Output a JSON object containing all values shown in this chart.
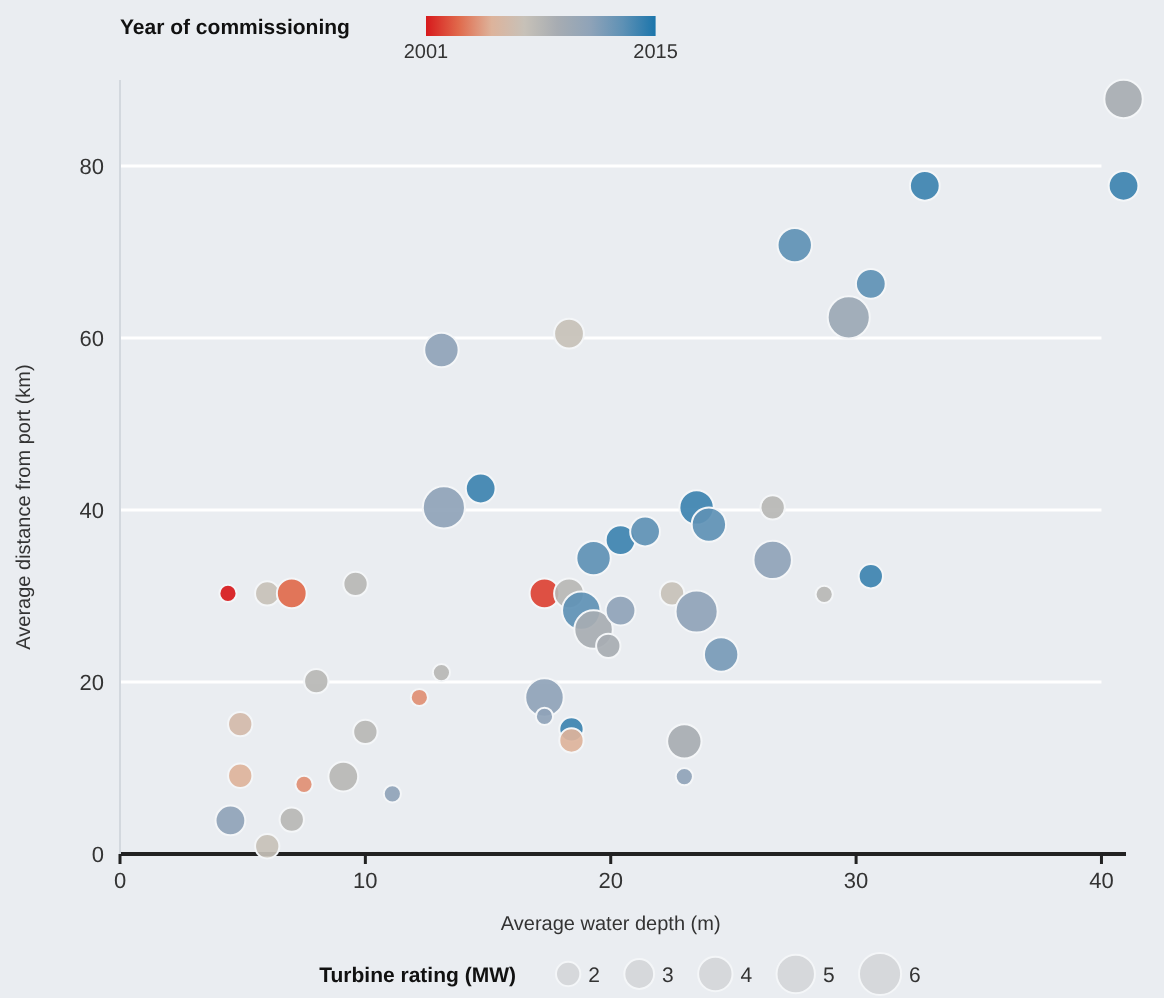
{
  "chart_data": {
    "type": "bubble",
    "xlabel": "Average water depth (m)",
    "ylabel": "Average distance from port (km)",
    "legend_title": "Turbine rating (MW)",
    "clabel": "Year of commissioning",
    "xlim": [
      0,
      41
    ],
    "xticks": [
      0,
      10,
      20,
      30,
      40
    ],
    "ylim": [
      0,
      90
    ],
    "yticks": [
      0,
      20,
      40,
      60,
      80
    ],
    "grid": "y",
    "clim": [
      2001,
      2015
    ],
    "cticks": [
      2001,
      2015
    ],
    "size_legend": [
      2,
      3,
      4,
      5,
      6
    ],
    "x": [
      40.9,
      32.8,
      40.9,
      27.5,
      30.6,
      29.7,
      13.1,
      18.3,
      13.2,
      14.7,
      4.4,
      6.0,
      7.0,
      9.6,
      17.3,
      18.3,
      18.8,
      19.3,
      20.4,
      19.9,
      19.3,
      20.4,
      21.4,
      23.5,
      24.0,
      26.6,
      26.6,
      30.6,
      22.5,
      28.7,
      23.5,
      24.5,
      23.0,
      23.0,
      17.3,
      17.3,
      18.4,
      18.4,
      13.1,
      12.2,
      8.0,
      4.9,
      10.0,
      9.1,
      4.9,
      7.5,
      11.1,
      4.5,
      7.0,
      6.0
    ],
    "values": [
      87.8,
      77.7,
      77.7,
      70.8,
      66.3,
      62.4,
      58.6,
      60.5,
      40.3,
      42.5,
      30.3,
      30.3,
      30.3,
      31.4,
      30.3,
      30.3,
      28.3,
      26.1,
      28.3,
      24.2,
      34.4,
      36.5,
      37.5,
      40.3,
      38.3,
      40.3,
      34.2,
      32.3,
      30.3,
      30.2,
      28.2,
      23.2,
      13.1,
      9.0,
      18.2,
      16.0,
      14.5,
      13.2,
      21.1,
      18.2,
      20.1,
      15.1,
      14.2,
      9.0,
      9.1,
      8.1,
      7.0,
      3.9,
      4.0,
      0.9
    ],
    "sizes": [
      5,
      3,
      3,
      4,
      3,
      6,
      4,
      3,
      6,
      3,
      1,
      2,
      3,
      2,
      3,
      3,
      5,
      5,
      3,
      2,
      4,
      3,
      3,
      4,
      4,
      2,
      5,
      2,
      2,
      1,
      6,
      4,
      4,
      1,
      5,
      1,
      2,
      2,
      1,
      1,
      2,
      2,
      2,
      3,
      2,
      1,
      1,
      3,
      2,
      2
    ],
    "cvalues": [
      2009,
      2014,
      2014,
      2013,
      2013,
      2010,
      2011,
      2007,
      2011,
      2014,
      2001,
      2007,
      2003,
      2008,
      2002,
      2008,
      2013,
      2009,
      2011,
      2009,
      2013,
      2014,
      2013,
      2014,
      2013,
      2008,
      2011,
      2014,
      2007,
      2008,
      2011,
      2012,
      2009,
      2011,
      2011,
      2011,
      2014,
      2005,
      2008,
      2004,
      2008,
      2006,
      2008,
      2008,
      2005,
      2004,
      2011,
      2011,
      2008,
      2007
    ]
  }
}
